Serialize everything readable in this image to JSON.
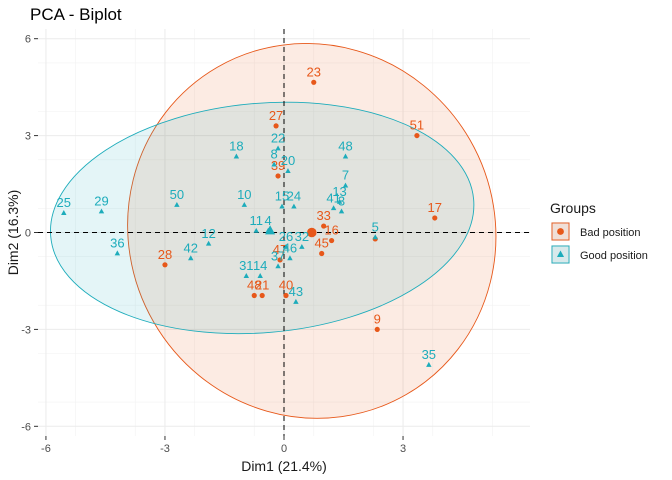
{
  "chart_data": {
    "type": "scatter",
    "title": "PCA - Biplot",
    "xlabel": "Dim1 (21.4%)",
    "ylabel": "Dim2 (16.3%)",
    "xlim": [
      -6.2,
      6.2
    ],
    "ylim": [
      -6.3,
      6.3
    ],
    "xticks": [
      -6,
      -3,
      0,
      3
    ],
    "yticks": [
      -6,
      -3,
      0,
      3,
      6
    ],
    "grid": true,
    "reference_lines": {
      "x": 0,
      "y": 0,
      "style": "dashed"
    },
    "legend": {
      "title": "Groups",
      "position": "right"
    },
    "series": [
      {
        "name": "Bad position",
        "color": "#E7581A",
        "marker": "circle",
        "centroid": [
          0.7,
          0.0
        ],
        "ellipse": {
          "cx": 0.7,
          "cy": 0.05,
          "rx": 4.6,
          "ry": 5.85,
          "angle": 30
        },
        "points": [
          {
            "label": "23",
            "x": 0.75,
            "y": 4.65
          },
          {
            "label": "51",
            "x": 3.35,
            "y": 3.0
          },
          {
            "label": "27",
            "x": -0.2,
            "y": 3.3
          },
          {
            "label": "39",
            "x": -0.15,
            "y": 1.75
          },
          {
            "label": "17",
            "x": 3.8,
            "y": 0.45
          },
          {
            "label": "33",
            "x": 1.0,
            "y": 0.2
          },
          {
            "label": "16",
            "x": 1.2,
            "y": -0.25
          },
          {
            "label": "45",
            "x": 0.95,
            "y": -0.65
          },
          {
            "label": "28",
            "x": -3.0,
            "y": -1.0
          },
          {
            "label": "47",
            "x": -0.1,
            "y": -0.85
          },
          {
            "label": "48",
            "x": -0.75,
            "y": -1.95
          },
          {
            "label": "21",
            "x": -0.55,
            "y": -1.95
          },
          {
            "label": "40",
            "x": 0.05,
            "y": -1.95
          },
          {
            "label": "9",
            "x": 2.35,
            "y": -3.0
          },
          {
            "label": "",
            "x": 2.3,
            "y": -0.2
          }
        ]
      },
      {
        "name": "Good position",
        "color": "#1DACBB",
        "marker": "triangle",
        "centroid": [
          -0.35,
          0.05
        ],
        "ellipse": {
          "cx": -0.55,
          "cy": 0.45,
          "rx": 5.35,
          "ry": 3.55,
          "angle": 5
        },
        "points": [
          {
            "label": "25",
            "x": -5.55,
            "y": 0.6
          },
          {
            "label": "29",
            "x": -4.6,
            "y": 0.65
          },
          {
            "label": "36",
            "x": -4.2,
            "y": -0.65
          },
          {
            "label": "50",
            "x": -2.7,
            "y": 0.85
          },
          {
            "label": "12",
            "x": -1.9,
            "y": -0.35
          },
          {
            "label": "42",
            "x": -2.35,
            "y": -0.8
          },
          {
            "label": "18",
            "x": -1.2,
            "y": 2.35
          },
          {
            "label": "22",
            "x": -0.15,
            "y": 2.6
          },
          {
            "label": "8",
            "x": -0.25,
            "y": 2.1
          },
          {
            "label": "20",
            "x": 0.1,
            "y": 1.9
          },
          {
            "label": "48",
            "x": 1.55,
            "y": 2.35
          },
          {
            "label": "7",
            "x": 1.55,
            "y": 1.45
          },
          {
            "label": "13",
            "x": 1.4,
            "y": 0.95
          },
          {
            "label": "41",
            "x": 1.25,
            "y": 0.75
          },
          {
            "label": "3",
            "x": 1.45,
            "y": 0.65
          },
          {
            "label": "10",
            "x": -1.0,
            "y": 0.85
          },
          {
            "label": "15",
            "x": -0.05,
            "y": 0.8
          },
          {
            "label": "24",
            "x": 0.25,
            "y": 0.8
          },
          {
            "label": "5",
            "x": 2.3,
            "y": -0.15
          },
          {
            "label": "11",
            "x": -0.7,
            "y": 0.05
          },
          {
            "label": "4",
            "x": -0.4,
            "y": 0.05
          },
          {
            "label": "26",
            "x": 0.05,
            "y": -0.45
          },
          {
            "label": "32",
            "x": 0.45,
            "y": -0.45
          },
          {
            "label": "46",
            "x": 0.15,
            "y": -0.8
          },
          {
            "label": "31",
            "x": -0.95,
            "y": -1.35
          },
          {
            "label": "14",
            "x": -0.6,
            "y": -1.35
          },
          {
            "label": "37",
            "x": -0.15,
            "y": -1.05
          },
          {
            "label": "43",
            "x": 0.3,
            "y": -2.15
          },
          {
            "label": "35",
            "x": 3.65,
            "y": -4.1
          }
        ]
      }
    ]
  }
}
